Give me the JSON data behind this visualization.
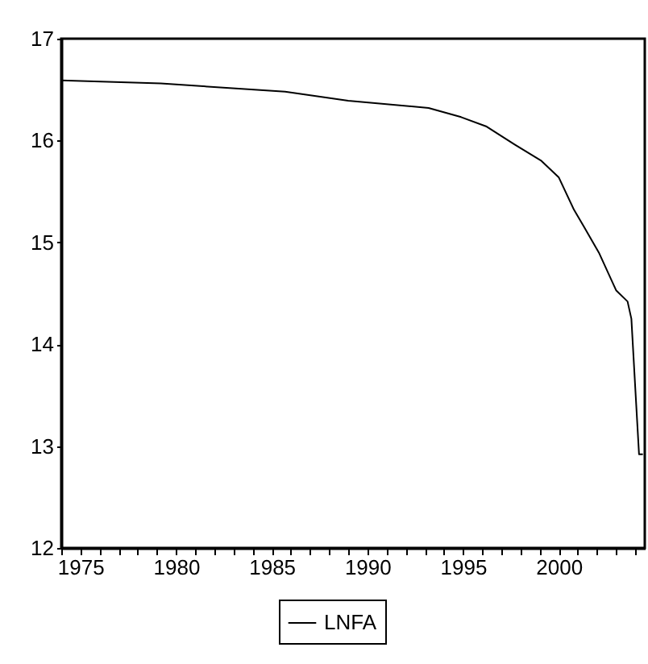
{
  "chart_data": {
    "type": "line",
    "x": [
      1974.0,
      1979.2,
      1985.7,
      1989.0,
      1993.2,
      1994.9,
      1996.2,
      1997.7,
      1999.1,
      2000.0,
      2000.8,
      2001.3,
      2002.1,
      2003.0,
      2003.6,
      2003.8,
      2004.0,
      2004.2,
      2004.4
    ],
    "series": [
      {
        "name": "LNFA",
        "color": "#000000",
        "values": [
          16.59,
          16.56,
          16.48,
          16.39,
          16.32,
          16.23,
          16.14,
          15.96,
          15.8,
          15.64,
          15.32,
          15.16,
          14.9,
          14.53,
          14.42,
          14.25,
          13.58,
          12.92,
          12.92
        ]
      }
    ],
    "xlim": [
      1974,
      2004.5
    ],
    "ylim": [
      12,
      17
    ],
    "xticks": [
      {
        "value": 1974,
        "label": null
      },
      1975,
      {
        "value": 1976,
        "label": null
      },
      {
        "value": 1977,
        "label": null
      },
      {
        "value": 1978,
        "label": null
      },
      {
        "value": 1979,
        "label": null
      },
      1980,
      {
        "value": 1981,
        "label": null
      },
      {
        "value": 1982,
        "label": null
      },
      {
        "value": 1983,
        "label": null
      },
      {
        "value": 1984,
        "label": null
      },
      1985,
      {
        "value": 1986,
        "label": null
      },
      {
        "value": 1987,
        "label": null
      },
      {
        "value": 1988,
        "label": null
      },
      {
        "value": 1989,
        "label": null
      },
      1990,
      {
        "value": 1991,
        "label": null
      },
      {
        "value": 1992,
        "label": null
      },
      {
        "value": 1993,
        "label": null
      },
      {
        "value": 1994,
        "label": null
      },
      1995,
      {
        "value": 1996,
        "label": null
      },
      {
        "value": 1997,
        "label": null
      },
      {
        "value": 1998,
        "label": null
      },
      {
        "value": 1999,
        "label": null
      },
      2000,
      {
        "value": 2001,
        "label": null
      },
      {
        "value": 2002,
        "label": null
      },
      {
        "value": 2003,
        "label": null
      },
      {
        "value": 2004,
        "label": null
      }
    ],
    "yticks": [
      12,
      13,
      14,
      15,
      16,
      17
    ],
    "legend": "bottom"
  }
}
